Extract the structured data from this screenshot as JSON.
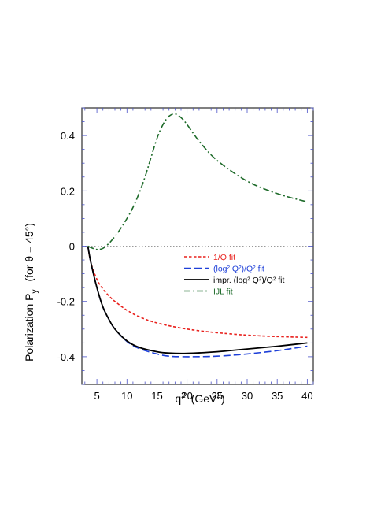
{
  "chart_data": {
    "type": "line",
    "xlabel": "q",
    "xlabel_sup": "2",
    "xlabel_unit": "(GeV",
    "xlabel_unit_sup": "2",
    "xlabel_unit_close": ")",
    "ylabel_main": "Polarization  P",
    "ylabel_sub": "y",
    "ylabel_paren": "(for θ = 45°)",
    "xlim": [
      2.5,
      41
    ],
    "ylim": [
      -0.5,
      0.5
    ],
    "xticks": [
      5,
      10,
      15,
      20,
      25,
      30,
      35,
      40
    ],
    "yticks": [
      -0.4,
      -0.2,
      0,
      0.2,
      0.4
    ],
    "xtick_labels": [
      "5",
      "10",
      "15",
      "20",
      "25",
      "30",
      "35",
      "40"
    ],
    "ytick_labels": [
      "-0.4",
      "-0.2",
      "0",
      "0.2",
      "0.4"
    ],
    "zero_line": true,
    "legend_placement": "center-right",
    "series": [
      {
        "name": "1/Q fit",
        "color": "#e8201c",
        "style": "dotted",
        "x": [
          3.5,
          4,
          5,
          6,
          7,
          8,
          10,
          12,
          15,
          20,
          25,
          30,
          35,
          40
        ],
        "y": [
          0,
          -0.06,
          -0.12,
          -0.155,
          -0.18,
          -0.2,
          -0.232,
          -0.255,
          -0.278,
          -0.3,
          -0.313,
          -0.322,
          -0.327,
          -0.33
        ]
      },
      {
        "name": "(log² Q²)/Q² fit",
        "color": "#1d3fd8",
        "style": "dashed",
        "x": [
          3.5,
          4,
          5,
          6,
          7,
          8,
          10,
          12,
          15,
          17,
          20,
          25,
          30,
          35,
          40
        ],
        "y": [
          0,
          -0.06,
          -0.15,
          -0.22,
          -0.265,
          -0.3,
          -0.345,
          -0.37,
          -0.39,
          -0.398,
          -0.4,
          -0.398,
          -0.39,
          -0.378,
          -0.362
        ]
      },
      {
        "name": "impr. (log² Q²)/Q² fit",
        "color": "#000000",
        "style": "solid",
        "x": [
          3.5,
          4,
          5,
          6,
          7,
          8,
          10,
          12,
          15,
          17,
          20,
          25,
          30,
          35,
          40
        ],
        "y": [
          0,
          -0.06,
          -0.15,
          -0.22,
          -0.265,
          -0.3,
          -0.343,
          -0.366,
          -0.382,
          -0.387,
          -0.388,
          -0.382,
          -0.372,
          -0.362,
          -0.35
        ]
      },
      {
        "name": "IJL fit",
        "color": "#1e6b2a",
        "style": "dashdot",
        "x": [
          3.5,
          4,
          5,
          6,
          7,
          8,
          9,
          10,
          11,
          12,
          13,
          14,
          15,
          16,
          17,
          18,
          19,
          20,
          22,
          25,
          30,
          35,
          40
        ],
        "y": [
          0,
          -0.005,
          -0.012,
          -0.008,
          0.01,
          0.035,
          0.065,
          0.1,
          0.14,
          0.19,
          0.25,
          0.32,
          0.39,
          0.44,
          0.47,
          0.478,
          0.465,
          0.44,
          0.38,
          0.31,
          0.235,
          0.19,
          0.16
        ]
      }
    ]
  }
}
